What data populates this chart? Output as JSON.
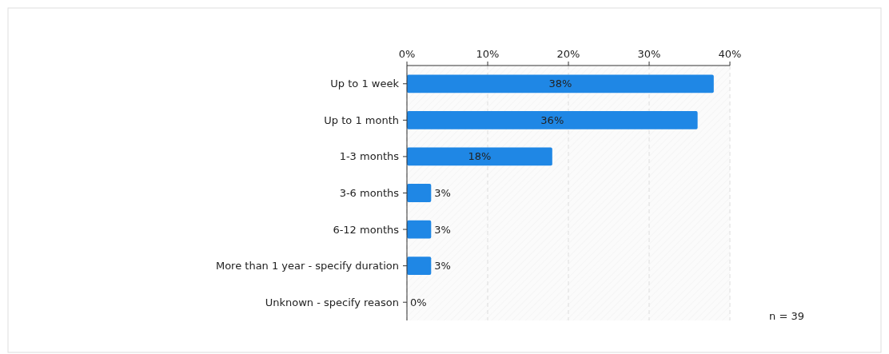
{
  "chart_data": {
    "type": "bar",
    "orientation": "horizontal",
    "categories": [
      "Up to 1 week",
      "Up to 1 month",
      "1-3 months",
      "3-6 months",
      "6-12 months",
      "More than 1 year - specify duration",
      "Unknown - specify reason"
    ],
    "values": [
      38,
      36,
      18,
      3,
      3,
      3,
      0
    ],
    "color": "#1f87e5",
    "xlim": [
      0,
      40
    ],
    "xticks": [
      {
        "value": 0,
        "label": "0%"
      },
      {
        "value": 10,
        "label": "10%"
      },
      {
        "value": 20,
        "label": "20%"
      },
      {
        "value": 30,
        "label": "30%"
      },
      {
        "value": 40,
        "label": "40%"
      }
    ],
    "value_labels": [
      "38%",
      "36%",
      "18%",
      "3%",
      "3%",
      "3%",
      "0%"
    ],
    "grid": "x",
    "annotations": [
      "n = 39"
    ]
  }
}
